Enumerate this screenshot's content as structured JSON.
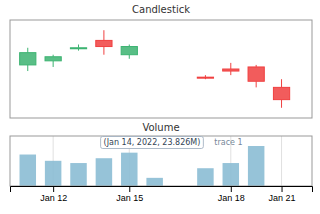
{
  "chart_data": [
    {
      "type": "candlestick",
      "title": "Candlestick",
      "x": [
        0,
        1,
        2,
        3,
        4,
        7,
        8,
        9,
        10
      ],
      "open": [
        174.0,
        172.0,
        175.0,
        177.0,
        175.5,
        168.0,
        170.0,
        170.5,
        165.5
      ],
      "high": [
        175.2,
        173.5,
        176.0,
        179.5,
        176.0,
        168.5,
        171.5,
        171.0,
        167.5
      ],
      "low": [
        169.5,
        170.5,
        174.5,
        173.5,
        172.5,
        167.5,
        168.5,
        165.5,
        160.5
      ],
      "close": [
        171.0,
        173.0,
        175.2,
        175.5,
        173.5,
        168.0,
        169.5,
        167.0,
        162.5
      ],
      "colors": [
        "#3cb371",
        "#3cb371",
        "#3cb371",
        "#f04040",
        "#3cb371",
        "#f04040",
        "#f04040",
        "#f04040",
        "#f04040"
      ],
      "xlim": [
        -0.7,
        11.2
      ],
      "ylim": [
        158,
        182
      ],
      "tick_labels": false
    },
    {
      "type": "bar",
      "title": "Volume",
      "x": [
        0,
        1,
        2,
        3,
        4,
        5,
        7,
        8,
        9,
        10
      ],
      "values": [
        85,
        68,
        62,
        75,
        90,
        22,
        48,
        62,
        108,
        0
      ],
      "color": "#8bbdd4",
      "xlim": [
        -0.7,
        11.2
      ],
      "ylim": [
        0,
        135
      ],
      "xticks": [
        {
          "value": 1,
          "label": "Jan 12"
        },
        {
          "value": 4,
          "label": "Jan 15"
        },
        {
          "value": 8,
          "label": "Jan 18"
        },
        {
          "value": 10,
          "label": "Jan 21"
        }
      ],
      "grid": true,
      "tick_labels": "x",
      "annotations": [
        "(Jan 14, 2022, 23.826M)",
        "trace 1"
      ]
    }
  ]
}
